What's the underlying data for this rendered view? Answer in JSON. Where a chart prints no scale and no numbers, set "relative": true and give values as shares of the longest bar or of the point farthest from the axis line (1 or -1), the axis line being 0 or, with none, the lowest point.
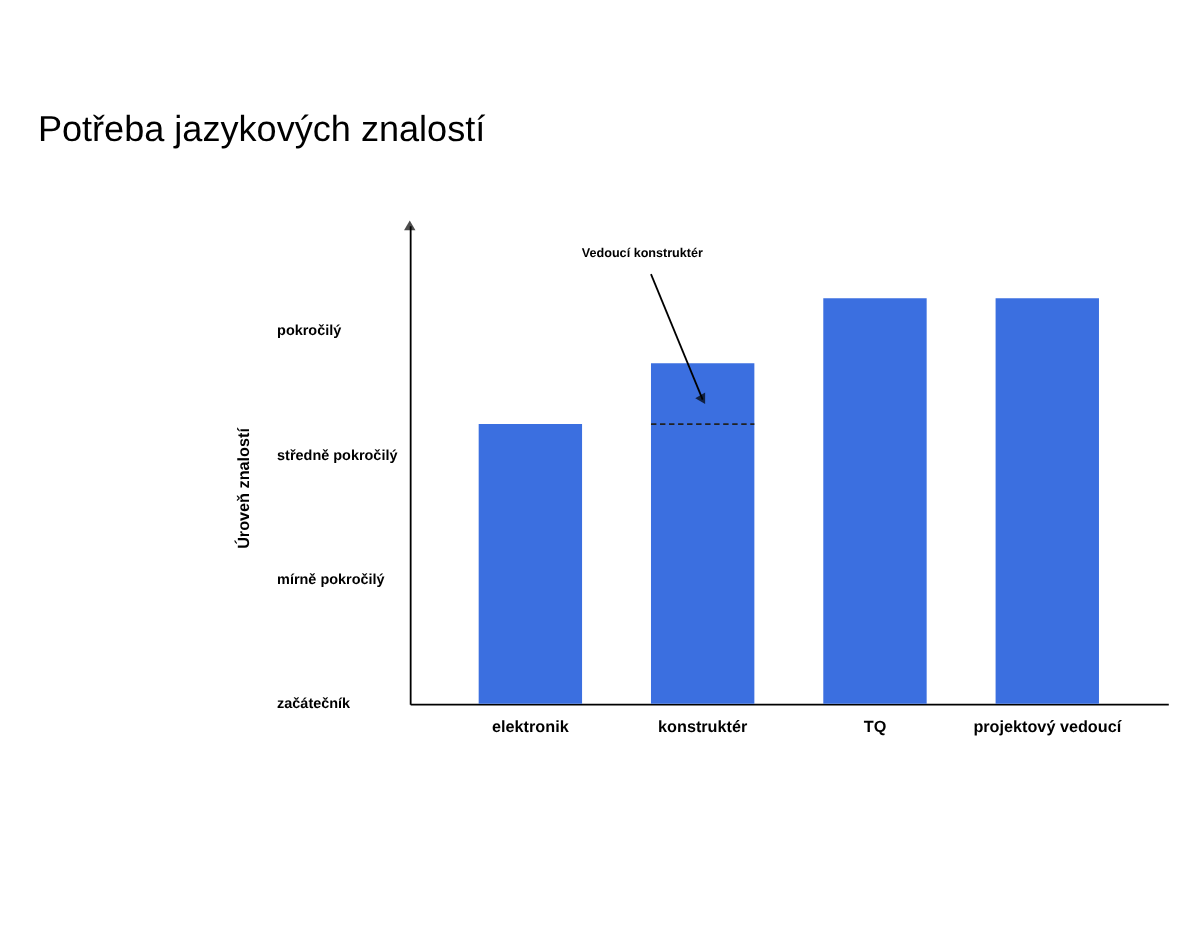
{
  "chart_data": {
    "type": "bar",
    "title": "Potřeba jazykových znalostí",
    "categories": [
      "elektronik",
      "konstruktér",
      "TQ",
      "projektový vedoucí"
    ],
    "relative": true,
    "stacked": true,
    "series": [
      {
        "color": "#3b6fe0",
        "values": [
          0.69,
          0.69,
          1,
          1
        ]
      },
      {
        "color": "#3b6fe0",
        "values": [
          0,
          0.15,
          0,
          0
        ]
      }
    ],
    "annotations": [
      "Úroveň znalostí",
      "začátečník",
      "mírně pokročilý",
      "středně pokročilý",
      "pokročilý",
      "Vedoucí konstruktér"
    ]
  }
}
